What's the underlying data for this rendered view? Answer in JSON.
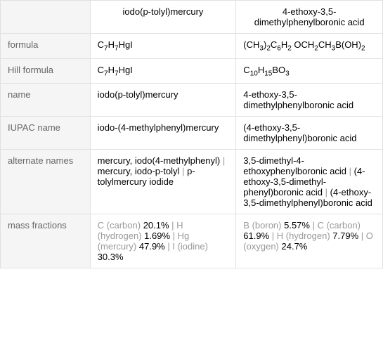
{
  "colors": {
    "border": "#e0e0e0",
    "label_bg": "#f5f5f5",
    "label_text": "#666666",
    "gray_text": "#999999",
    "text": "#333333"
  },
  "headers": {
    "col1": "",
    "col2": "iodo(p-tolyl)mercury",
    "col3": "4-ethoxy-3,5-dimethylphenylboronic acid"
  },
  "rows": {
    "formula": {
      "label": "formula",
      "col2_html": "C<sub>7</sub>H<sub>7</sub>HgI",
      "col3_html": "(CH<sub>3</sub>)<sub>2</sub>C<sub>6</sub>H<sub>2</sub> OCH<sub>2</sub>CH<sub>3</sub>B(OH)<sub>2</sub>"
    },
    "hill": {
      "label": "Hill formula",
      "col2_html": "C<sub>7</sub>H<sub>7</sub>HgI",
      "col3_html": "C<sub>10</sub>H<sub>15</sub>BO<sub>3</sub>"
    },
    "name": {
      "label": "name",
      "col2": "iodo(p-tolyl)mercury",
      "col3": "4-ethoxy-3,5-dimethylphenylboronic acid"
    },
    "iupac": {
      "label": "IUPAC name",
      "col2": "iodo-(4-methylphenyl)mercury",
      "col3": "(4-ethoxy-3,5-dimethylphenyl)boronic acid"
    },
    "alternate": {
      "label": "alternate names",
      "col2_parts": [
        "mercury, iodo(4-methylphenyl)",
        " | ",
        "mercury, iodo-p-tolyl",
        " | ",
        "p-tolylmercury iodide"
      ],
      "col3_parts": [
        "3,5-dimethyl-4-ethoxyphenylboronic acid",
        " | ",
        "(4-ethoxy-3,5-dimethyl-phenyl)boronic acid",
        " | ",
        "(4-ethoxy-3,5-dimethylphenyl)boronic acid"
      ]
    },
    "mass": {
      "label": "mass fractions",
      "col2_parts": [
        {
          "g": "C (carbon) ",
          "v": "20.1%"
        },
        {
          "sep": " | "
        },
        {
          "g": "H (hydrogen) ",
          "v": "1.69%"
        },
        {
          "sep": " | "
        },
        {
          "g": "Hg (mercury) ",
          "v": "47.9%"
        },
        {
          "sep": " | "
        },
        {
          "g": "I (iodine) ",
          "v": "30.3%"
        }
      ],
      "col3_parts": [
        {
          "g": "B (boron) ",
          "v": "5.57%"
        },
        {
          "sep": " | "
        },
        {
          "g": "C (carbon) ",
          "v": "61.9%"
        },
        {
          "sep": " | "
        },
        {
          "g": "H (hydrogen) ",
          "v": "7.79%"
        },
        {
          "sep": " | "
        },
        {
          "g": "O (oxygen) ",
          "v": "24.7%"
        }
      ]
    }
  }
}
